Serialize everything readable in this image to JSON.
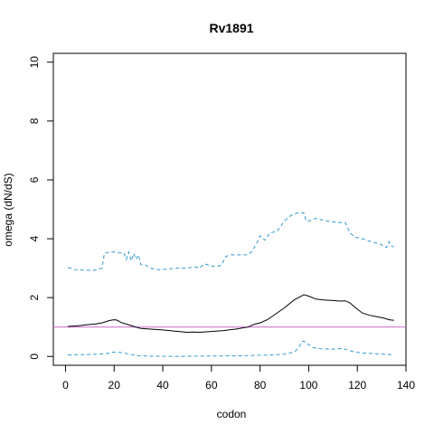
{
  "chart_data": {
    "type": "line",
    "title": "Rv1891",
    "xlabel": "codon",
    "ylabel": "omega (dN/dS)",
    "xlim": [
      -5,
      140
    ],
    "ylim": [
      -0.3,
      10.3
    ],
    "x_ticks": [
      0,
      20,
      40,
      60,
      80,
      100,
      120,
      140
    ],
    "y_ticks": [
      0,
      2,
      4,
      6,
      8,
      10
    ],
    "grid": false,
    "reference_line": {
      "y": 1,
      "color": "#cc66cc"
    },
    "series": [
      {
        "style": "solid",
        "color": "#000000",
        "points": [
          [
            1,
            1.02
          ],
          [
            5,
            1.04
          ],
          [
            8,
            1.07
          ],
          [
            12,
            1.1
          ],
          [
            15,
            1.14
          ],
          [
            18,
            1.22
          ],
          [
            20,
            1.25
          ],
          [
            21,
            1.24
          ],
          [
            23,
            1.15
          ],
          [
            25,
            1.1
          ],
          [
            28,
            1.02
          ],
          [
            31,
            0.95
          ],
          [
            35,
            0.93
          ],
          [
            40,
            0.9
          ],
          [
            45,
            0.86
          ],
          [
            50,
            0.82
          ],
          [
            53,
            0.83
          ],
          [
            55,
            0.82
          ],
          [
            60,
            0.85
          ],
          [
            65,
            0.88
          ],
          [
            70,
            0.93
          ],
          [
            75,
            1.0
          ],
          [
            78,
            1.1
          ],
          [
            80,
            1.14
          ],
          [
            83,
            1.25
          ],
          [
            86,
            1.42
          ],
          [
            90,
            1.65
          ],
          [
            94,
            1.92
          ],
          [
            97,
            2.05
          ],
          [
            98,
            2.1
          ],
          [
            100,
            2.05
          ],
          [
            103,
            1.95
          ],
          [
            106,
            1.92
          ],
          [
            110,
            1.9
          ],
          [
            113,
            1.88
          ],
          [
            115,
            1.89
          ],
          [
            117,
            1.82
          ],
          [
            119,
            1.67
          ],
          [
            122,
            1.48
          ],
          [
            125,
            1.4
          ],
          [
            128,
            1.35
          ],
          [
            131,
            1.3
          ],
          [
            133,
            1.25
          ],
          [
            135,
            1.23
          ]
        ]
      },
      {
        "style": "dashed",
        "color": "#3399cc",
        "points": [
          [
            1,
            3.02
          ],
          [
            4,
            2.95
          ],
          [
            8,
            2.93
          ],
          [
            12,
            2.93
          ],
          [
            15,
            3.0
          ],
          [
            16,
            3.5
          ],
          [
            18,
            3.55
          ],
          [
            20,
            3.55
          ],
          [
            22,
            3.52
          ],
          [
            24,
            3.52
          ],
          [
            25,
            3.3
          ],
          [
            26,
            3.55
          ],
          [
            27,
            3.25
          ],
          [
            28,
            3.5
          ],
          [
            29,
            3.3
          ],
          [
            30,
            3.45
          ],
          [
            31,
            3.12
          ],
          [
            33,
            3.1
          ],
          [
            35,
            3.0
          ],
          [
            38,
            2.95
          ],
          [
            40,
            2.95
          ],
          [
            43,
            2.98
          ],
          [
            46,
            3.0
          ],
          [
            50,
            3.0
          ],
          [
            53,
            3.05
          ],
          [
            55,
            3.0
          ],
          [
            57,
            3.15
          ],
          [
            60,
            3.08
          ],
          [
            62,
            3.05
          ],
          [
            64,
            3.1
          ],
          [
            66,
            3.4
          ],
          [
            68,
            3.45
          ],
          [
            72,
            3.45
          ],
          [
            75,
            3.45
          ],
          [
            77,
            3.6
          ],
          [
            79,
            3.9
          ],
          [
            80,
            4.1
          ],
          [
            82,
            3.95
          ],
          [
            84,
            4.2
          ],
          [
            87,
            4.25
          ],
          [
            90,
            4.6
          ],
          [
            92,
            4.75
          ],
          [
            94,
            4.85
          ],
          [
            96,
            4.88
          ],
          [
            98,
            4.88
          ],
          [
            99,
            4.6
          ],
          [
            101,
            4.62
          ],
          [
            103,
            4.7
          ],
          [
            105,
            4.65
          ],
          [
            108,
            4.6
          ],
          [
            112,
            4.55
          ],
          [
            115,
            4.55
          ],
          [
            117,
            4.2
          ],
          [
            119,
            4.05
          ],
          [
            122,
            4.0
          ],
          [
            125,
            3.92
          ],
          [
            128,
            3.85
          ],
          [
            130,
            3.8
          ],
          [
            132,
            3.7
          ],
          [
            133,
            3.9
          ],
          [
            134,
            3.75
          ],
          [
            135,
            3.72
          ]
        ]
      },
      {
        "style": "dashed",
        "color": "#3399cc",
        "points": [
          [
            1,
            0.05
          ],
          [
            5,
            0.06
          ],
          [
            10,
            0.07
          ],
          [
            14,
            0.08
          ],
          [
            17,
            0.1
          ],
          [
            19,
            0.14
          ],
          [
            21,
            0.15
          ],
          [
            23,
            0.13
          ],
          [
            25,
            0.1
          ],
          [
            28,
            0.05
          ],
          [
            31,
            0.02
          ],
          [
            35,
            0.01
          ],
          [
            45,
            0.0
          ],
          [
            55,
            0.01
          ],
          [
            65,
            0.02
          ],
          [
            75,
            0.03
          ],
          [
            85,
            0.05
          ],
          [
            90,
            0.08
          ],
          [
            94,
            0.15
          ],
          [
            96,
            0.3
          ],
          [
            97,
            0.5
          ],
          [
            98,
            0.52
          ],
          [
            100,
            0.4
          ],
          [
            102,
            0.3
          ],
          [
            105,
            0.26
          ],
          [
            110,
            0.25
          ],
          [
            114,
            0.27
          ],
          [
            116,
            0.22
          ],
          [
            119,
            0.15
          ],
          [
            122,
            0.12
          ],
          [
            126,
            0.1
          ],
          [
            130,
            0.08
          ],
          [
            135,
            0.06
          ]
        ]
      }
    ]
  }
}
